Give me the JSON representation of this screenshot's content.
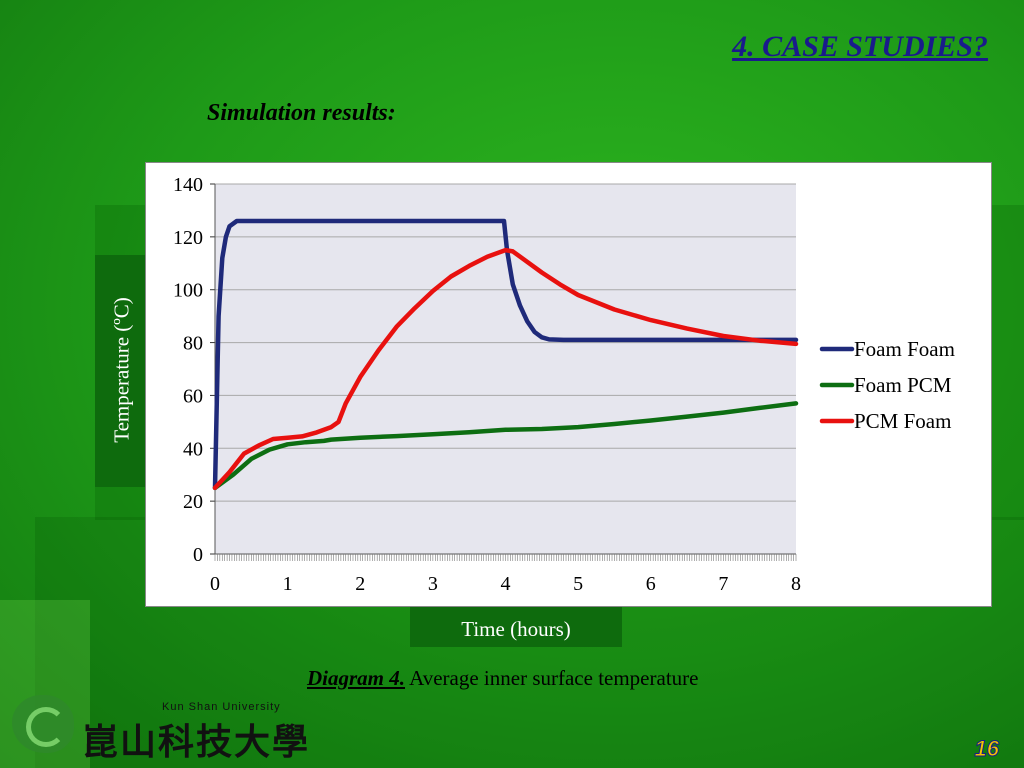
{
  "slide": {
    "title": "4. CASE STUDIES?",
    "subtitle": "Simulation results:",
    "caption_label": "Diagram 4.",
    "caption_text": " Average inner surface temperature",
    "page_number": "16"
  },
  "logo": {
    "name_en": "Kun Shan University",
    "name_zh": "崑山科技大學"
  },
  "colors": {
    "foam_foam": "#1f2a7a",
    "foam_pcm": "#0d6e12",
    "pcm_foam": "#e8110f",
    "plot_bg": "#e6e6ee",
    "grid": "#a8a8a8"
  },
  "chart_data": {
    "type": "line",
    "xlabel": "Time (hours)",
    "ylabel": "Temperature (ºC)",
    "xlim": [
      0,
      8
    ],
    "ylim": [
      0,
      140
    ],
    "x_ticks": [
      "0",
      "1",
      "2",
      "3",
      "4",
      "5",
      "6",
      "7",
      "8"
    ],
    "y_ticks": [
      "0",
      "20",
      "40",
      "60",
      "80",
      "100",
      "120",
      "140"
    ],
    "grid": true,
    "legend_position": "right",
    "series": [
      {
        "name": "Foam Foam",
        "color": "#1f2a7a",
        "points": [
          [
            0,
            25
          ],
          [
            0.05,
            90
          ],
          [
            0.1,
            112
          ],
          [
            0.15,
            120
          ],
          [
            0.2,
            124
          ],
          [
            0.3,
            126
          ],
          [
            1,
            126
          ],
          [
            2,
            126
          ],
          [
            3,
            126
          ],
          [
            3.98,
            126
          ],
          [
            4.02,
            115
          ],
          [
            4.1,
            102
          ],
          [
            4.2,
            94
          ],
          [
            4.3,
            88
          ],
          [
            4.4,
            84
          ],
          [
            4.5,
            82
          ],
          [
            4.6,
            81.2
          ],
          [
            4.8,
            81
          ],
          [
            5,
            81
          ],
          [
            6,
            81
          ],
          [
            7,
            81
          ],
          [
            8,
            81
          ]
        ]
      },
      {
        "name": "Foam PCM",
        "color": "#0d6e12",
        "points": [
          [
            0,
            25
          ],
          [
            0.25,
            30
          ],
          [
            0.5,
            36
          ],
          [
            0.75,
            39.5
          ],
          [
            1,
            41.5
          ],
          [
            1.25,
            42.3
          ],
          [
            1.5,
            42.8
          ],
          [
            1.6,
            43.3
          ],
          [
            2,
            44
          ],
          [
            2.5,
            44.6
          ],
          [
            3,
            45.3
          ],
          [
            3.5,
            46.1
          ],
          [
            4,
            47
          ],
          [
            4.5,
            47.3
          ],
          [
            5,
            48
          ],
          [
            5.5,
            49.2
          ],
          [
            6,
            50.5
          ],
          [
            6.5,
            52
          ],
          [
            7,
            53.5
          ],
          [
            7.5,
            55.3
          ],
          [
            8,
            57
          ]
        ]
      },
      {
        "name": "PCM Foam",
        "color": "#e8110f",
        "points": [
          [
            0,
            25
          ],
          [
            0.2,
            31
          ],
          [
            0.4,
            38
          ],
          [
            0.6,
            41
          ],
          [
            0.8,
            43.5
          ],
          [
            1,
            44
          ],
          [
            1.2,
            44.5
          ],
          [
            1.4,
            46
          ],
          [
            1.6,
            48
          ],
          [
            1.7,
            50
          ],
          [
            1.8,
            57
          ],
          [
            2,
            67
          ],
          [
            2.25,
            77
          ],
          [
            2.5,
            86
          ],
          [
            2.75,
            93
          ],
          [
            3,
            99.5
          ],
          [
            3.25,
            105
          ],
          [
            3.5,
            109
          ],
          [
            3.75,
            112.5
          ],
          [
            4,
            115
          ],
          [
            4.1,
            114.5
          ],
          [
            4.25,
            111.5
          ],
          [
            4.5,
            106.5
          ],
          [
            4.75,
            102
          ],
          [
            5,
            98
          ],
          [
            5.5,
            92.5
          ],
          [
            6,
            88.5
          ],
          [
            6.5,
            85.3
          ],
          [
            7,
            82.5
          ],
          [
            7.5,
            80.7
          ],
          [
            8,
            79.5
          ]
        ]
      }
    ]
  }
}
